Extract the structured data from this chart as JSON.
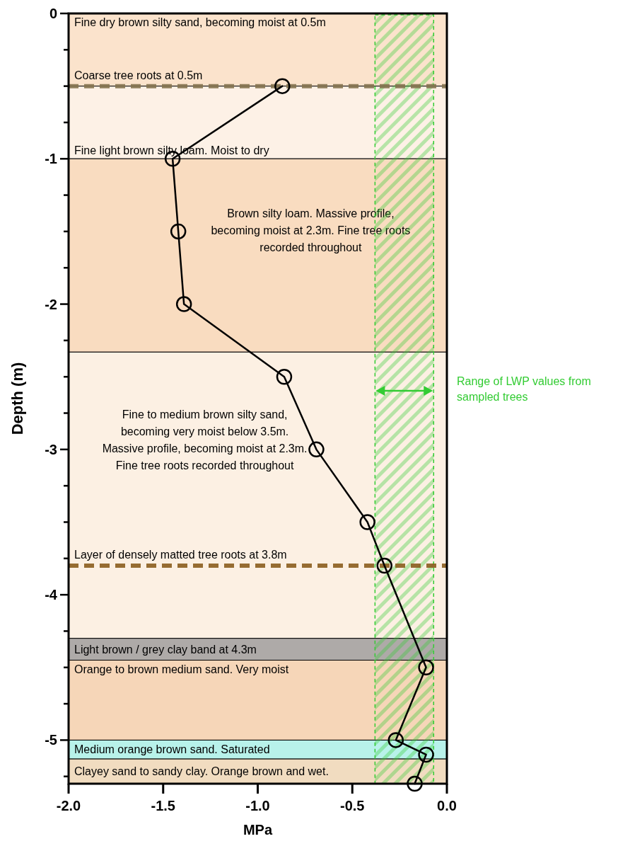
{
  "chart_data": {
    "type": "line",
    "xlabel": "MPa",
    "ylabel": "Depth (m)",
    "xlim": [
      -2,
      0
    ],
    "ylim": [
      -5.3,
      0
    ],
    "xticks": [
      {
        "value": -2,
        "label": "-2.0"
      },
      {
        "value": -1.5,
        "label": "-1.5"
      },
      {
        "value": -1,
        "label": "-1.0"
      },
      {
        "value": -0.5,
        "label": "-0.5"
      },
      {
        "value": 0,
        "label": "0.0"
      }
    ],
    "yticks": [
      0,
      {
        "value": -0.25,
        "label": null
      },
      {
        "value": -0.5,
        "label": null
      },
      {
        "value": -0.75,
        "label": null
      },
      -1,
      {
        "value": -1.25,
        "label": null
      },
      {
        "value": -1.5,
        "label": null
      },
      {
        "value": -1.75,
        "label": null
      },
      -2,
      {
        "value": -2.25,
        "label": null
      },
      {
        "value": -2.5,
        "label": null
      },
      {
        "value": -2.75,
        "label": null
      },
      -3,
      {
        "value": -3.25,
        "label": null
      },
      {
        "value": -3.5,
        "label": null
      },
      {
        "value": -3.75,
        "label": null
      },
      -4,
      {
        "value": -4.25,
        "label": null
      },
      {
        "value": -4.5,
        "label": null
      },
      {
        "value": -4.75,
        "label": null
      },
      -5,
      {
        "value": -5.25,
        "label": null
      }
    ],
    "marker": "circle",
    "line_style": "solid",
    "series": [
      {
        "color": "#000000",
        "x": [
          -0.87,
          -1.45,
          -1.42,
          -1.39,
          -0.86,
          -0.69,
          -0.42,
          -0.33,
          -0.11,
          -0.27,
          -0.11,
          -0.17
        ],
        "values": [
          -0.5,
          -1.0,
          -1.5,
          -2.0,
          -2.5,
          -3.0,
          -3.5,
          -3.8,
          -4.5,
          -5.0,
          -5.1,
          -5.3
        ]
      }
    ],
    "bands": [
      {
        "axis": "y",
        "from": 0,
        "to": -0.5,
        "label": "Fine dry brown silty sand, becoming moist at 0.5m",
        "color": "#fbe3cc"
      },
      {
        "axis": "y",
        "from": -0.5,
        "to": -1.0,
        "label": "Fine light brown silty loam. Moist to dry",
        "color": "#fdf1e6"
      },
      {
        "axis": "y",
        "from": -1.0,
        "to": -2.33,
        "label": "Brown silty loam. Massive profile,\nbecoming moist at 2.3m. Fine tree roots\nrecorded throughout",
        "color": "#f9dcc0"
      },
      {
        "axis": "y",
        "from": -2.33,
        "to": -4.3,
        "label": "Fine to medium brown silty sand,\nbecoming very moist below 3.5m.\nMassive profile, becoming moist at 2.3m.\nFine tree roots recorded throughout",
        "color": "#fcf0e3"
      },
      {
        "axis": "y",
        "from": -4.3,
        "to": -4.45,
        "label": "Light brown / grey clay band at 4.3m",
        "color": "#aeaaa8"
      },
      {
        "axis": "y",
        "from": -4.45,
        "to": -5.0,
        "label": "Orange to brown medium sand. Very moist",
        "color": "#f6d6b8"
      },
      {
        "axis": "y",
        "from": -5.0,
        "to": -5.13,
        "label": "Medium orange brown sand. Saturated",
        "color": "#b8f2ea"
      },
      {
        "axis": "y",
        "from": -5.13,
        "to": -5.3,
        "label": "Clayey sand to sandy clay. Orange brown and wet.",
        "color": "#f1dcc0"
      },
      {
        "axis": "x",
        "from": -0.38,
        "to": -0.07,
        "label": "Range of LWP values from\nsampled trees",
        "color": "#33cc33"
      }
    ],
    "ref_lines": [
      {
        "axis": "y",
        "value": -0.5,
        "label": "Coarse tree roots at 0.5m",
        "color": "#857450",
        "line_style": "dashed"
      },
      {
        "axis": "y",
        "value": -3.8,
        "label": "Layer of densely matted tree roots at 3.8m",
        "color": "#8b5e1e",
        "line_style": "dashed"
      }
    ]
  }
}
